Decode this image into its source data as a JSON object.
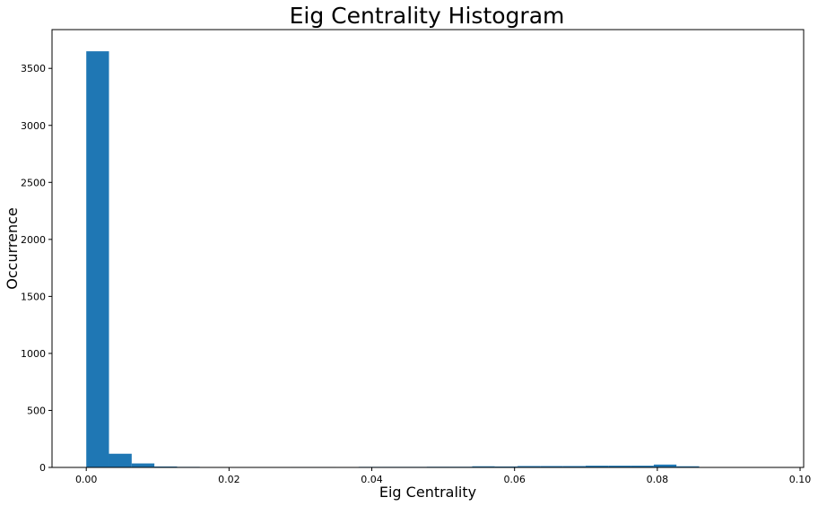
{
  "chart_data": {
    "type": "bar",
    "title": "Eig Centrality Histogram",
    "xlabel": "Eig Centrality",
    "ylabel": "Occurrence",
    "xlim": [
      -0.0048,
      0.1005
    ],
    "ylim": [
      0,
      3840
    ],
    "xticks": [
      "0.00",
      "0.02",
      "0.04",
      "0.06",
      "0.08",
      "0.10"
    ],
    "yticks": [
      "0",
      "500",
      "1000",
      "1500",
      "2000",
      "2500",
      "3000",
      "3500"
    ],
    "bin_width": 0.00318,
    "bins": [
      {
        "x0": 0.0,
        "value": 3650
      },
      {
        "x0": 0.00318,
        "value": 120
      },
      {
        "x0": 0.00636,
        "value": 35
      },
      {
        "x0": 0.00954,
        "value": 8
      },
      {
        "x0": 0.01272,
        "value": 5
      },
      {
        "x0": 0.0159,
        "value": 0
      },
      {
        "x0": 0.01908,
        "value": 0
      },
      {
        "x0": 0.02226,
        "value": 0
      },
      {
        "x0": 0.02544,
        "value": 0
      },
      {
        "x0": 0.02862,
        "value": 4
      },
      {
        "x0": 0.0318,
        "value": 4
      },
      {
        "x0": 0.03498,
        "value": 0
      },
      {
        "x0": 0.03816,
        "value": 5
      },
      {
        "x0": 0.04134,
        "value": 5
      },
      {
        "x0": 0.04452,
        "value": 5
      },
      {
        "x0": 0.0477,
        "value": 6
      },
      {
        "x0": 0.05088,
        "value": 6
      },
      {
        "x0": 0.05406,
        "value": 10
      },
      {
        "x0": 0.05724,
        "value": 8
      },
      {
        "x0": 0.06042,
        "value": 12
      },
      {
        "x0": 0.0636,
        "value": 12
      },
      {
        "x0": 0.06678,
        "value": 12
      },
      {
        "x0": 0.06996,
        "value": 15
      },
      {
        "x0": 0.07314,
        "value": 15
      },
      {
        "x0": 0.07632,
        "value": 15
      },
      {
        "x0": 0.0795,
        "value": 25
      },
      {
        "x0": 0.08268,
        "value": 10
      },
      {
        "x0": 0.08586,
        "value": 0
      },
      {
        "x0": 0.08904,
        "value": 0
      },
      {
        "x0": 0.09222,
        "value": 0
      }
    ],
    "bar_color": "#1f77b4",
    "grid": false
  }
}
